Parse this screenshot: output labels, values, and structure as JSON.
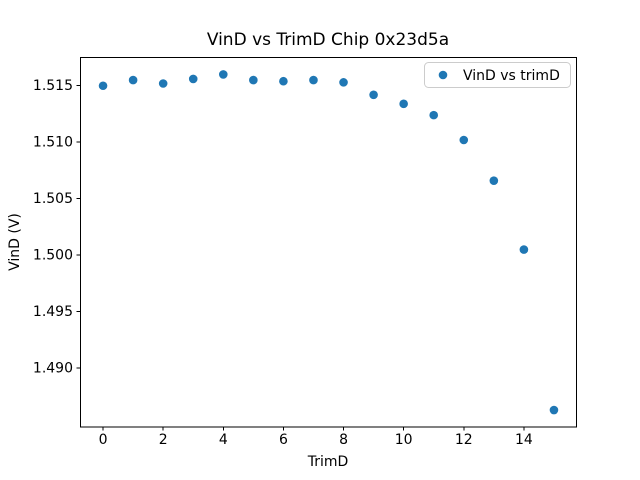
{
  "figure": {
    "background": "#ffffff"
  },
  "colors": {
    "marker": "#1f77b4",
    "spine": "#000000",
    "text": "#000000",
    "legend_border": "#cccccc",
    "background": "#ffffff"
  },
  "chart_data": {
    "type": "scatter",
    "title": "VinD vs TrimD Chip 0x23d5a",
    "xlabel": "TrimD",
    "ylabel": "VinD (V)",
    "xlim": [
      -0.75,
      15.75
    ],
    "ylim": [
      1.4848,
      1.5175
    ],
    "xticks": [
      0,
      2,
      4,
      6,
      8,
      10,
      12,
      14
    ],
    "xtick_labels": [
      "0",
      "2",
      "4",
      "6",
      "8",
      "10",
      "12",
      "14"
    ],
    "yticks": [
      1.49,
      1.495,
      1.5,
      1.505,
      1.51,
      1.515
    ],
    "ytick_labels": [
      "1.490",
      "1.495",
      "1.500",
      "1.505",
      "1.510",
      "1.515"
    ],
    "grid": false,
    "legend": {
      "label": "VinD vs trimD",
      "position": "upper right",
      "border_color": "#cccccc",
      "marker_color": "#1f77b4"
    },
    "series": [
      {
        "name": "VinD vs trimD",
        "color": "#1f77b4",
        "marker": "circle",
        "x": [
          0,
          1,
          2,
          3,
          4,
          5,
          6,
          7,
          8,
          9,
          10,
          11,
          12,
          13,
          14,
          15
        ],
        "y": [
          1.515,
          1.5155,
          1.5152,
          1.5156,
          1.516,
          1.5155,
          1.5154,
          1.5155,
          1.5153,
          1.5142,
          1.5134,
          1.5124,
          1.5102,
          1.5066,
          1.5005,
          1.4863
        ]
      }
    ]
  }
}
